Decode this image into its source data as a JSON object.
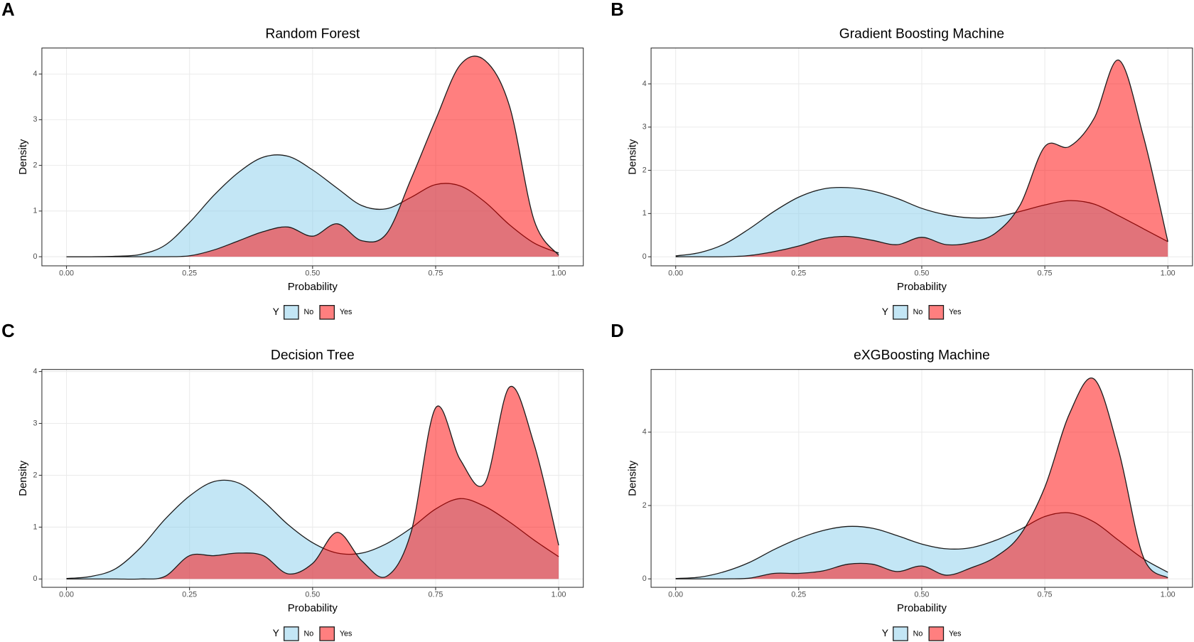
{
  "chart_data": [
    {
      "type": "area",
      "panel": "A",
      "title": "Random Forest",
      "xlabel": "Probability",
      "ylabel": "Density",
      "legend_title": "Y",
      "x": [
        0,
        0.05,
        0.1,
        0.15,
        0.2,
        0.25,
        0.3,
        0.35,
        0.4,
        0.45,
        0.5,
        0.55,
        0.6,
        0.65,
        0.7,
        0.75,
        0.8,
        0.85,
        0.9,
        0.95,
        1
      ],
      "series": [
        {
          "name": "No",
          "color": "#87CEEB",
          "values": [
            0,
            0,
            0.01,
            0.05,
            0.25,
            0.75,
            1.35,
            1.85,
            2.18,
            2.2,
            1.9,
            1.5,
            1.12,
            1.05,
            1.3,
            1.58,
            1.55,
            1.2,
            0.7,
            0.3,
            0.08
          ]
        },
        {
          "name": "Yes",
          "color": "#FF0000",
          "values": [
            0,
            0,
            0,
            0,
            0,
            0.02,
            0.15,
            0.35,
            0.55,
            0.65,
            0.45,
            0.72,
            0.35,
            0.5,
            1.7,
            3.0,
            4.2,
            4.3,
            3.3,
            0.8,
            0.03
          ]
        }
      ],
      "xlim": [
        -0.05,
        1.05
      ],
      "ylim": [
        -0.2,
        4.57
      ],
      "xticks": [
        {
          "value": 0,
          "label": "0.00"
        },
        0.25,
        {
          "value": 0.5,
          "label": "0.50"
        },
        0.75,
        {
          "value": 1,
          "label": "1.00"
        }
      ],
      "yticks": [
        0,
        1,
        2,
        3,
        4
      ],
      "grid": true
    },
    {
      "type": "area",
      "panel": "B",
      "title": "Gradient Boosting Machine",
      "xlabel": "Probability",
      "ylabel": "Density",
      "legend_title": "Y",
      "x": [
        0,
        0.05,
        0.1,
        0.15,
        0.2,
        0.25,
        0.3,
        0.35,
        0.4,
        0.45,
        0.5,
        0.55,
        0.6,
        0.65,
        0.7,
        0.75,
        0.8,
        0.85,
        0.9,
        0.95,
        1
      ],
      "series": [
        {
          "name": "No",
          "color": "#87CEEB",
          "values": [
            0.02,
            0.1,
            0.3,
            0.65,
            1.05,
            1.38,
            1.57,
            1.6,
            1.52,
            1.35,
            1.12,
            0.97,
            0.9,
            0.92,
            1.05,
            1.2,
            1.3,
            1.22,
            0.95,
            0.65,
            0.35
          ]
        },
        {
          "name": "Yes",
          "color": "#FF0000",
          "values": [
            0,
            0,
            0,
            0.03,
            0.12,
            0.25,
            0.42,
            0.47,
            0.38,
            0.28,
            0.45,
            0.28,
            0.33,
            0.55,
            1.2,
            2.55,
            2.55,
            3.2,
            4.55,
            2.8,
            0.35
          ]
        }
      ],
      "xlim": [
        -0.05,
        1.05
      ],
      "ylim": [
        -0.21,
        4.83
      ],
      "xticks": [
        {
          "value": 0,
          "label": "0.00"
        },
        0.25,
        {
          "value": 0.5,
          "label": "0.50"
        },
        0.75,
        {
          "value": 1,
          "label": "1.00"
        }
      ],
      "yticks": [
        0,
        1,
        2,
        3,
        4
      ],
      "grid": true
    },
    {
      "type": "area",
      "panel": "C",
      "title": "Decision Tree",
      "xlabel": "Probability",
      "ylabel": "Density",
      "legend_title": "Y",
      "x": [
        0,
        0.05,
        0.1,
        0.15,
        0.2,
        0.25,
        0.3,
        0.35,
        0.4,
        0.45,
        0.5,
        0.55,
        0.6,
        0.65,
        0.7,
        0.75,
        0.8,
        0.85,
        0.9,
        0.95,
        1
      ],
      "series": [
        {
          "name": "No",
          "color": "#87CEEB",
          "values": [
            0.01,
            0.05,
            0.2,
            0.6,
            1.15,
            1.6,
            1.88,
            1.85,
            1.5,
            1.05,
            0.7,
            0.5,
            0.5,
            0.68,
            0.98,
            1.35,
            1.55,
            1.4,
            1.1,
            0.75,
            0.43
          ]
        },
        {
          "name": "Yes",
          "color": "#FF0000",
          "values": [
            0,
            0,
            0,
            0,
            0.05,
            0.45,
            0.45,
            0.5,
            0.45,
            0.1,
            0.3,
            0.9,
            0.35,
            0.05,
            0.9,
            3.3,
            2.3,
            1.85,
            3.7,
            2.6,
            0.65
          ]
        }
      ],
      "xlim": [
        -0.05,
        1.05
      ],
      "ylim": [
        -0.16,
        4.04
      ],
      "xticks": [
        {
          "value": 0,
          "label": "0.00"
        },
        0.25,
        {
          "value": 0.5,
          "label": "0.50"
        },
        0.75,
        {
          "value": 1,
          "label": "1.00"
        }
      ],
      "yticks": [
        0,
        1,
        2,
        3,
        4
      ],
      "grid": true
    },
    {
      "type": "area",
      "panel": "D",
      "title": "eXGBoosting Machine",
      "xlabel": "Probability",
      "ylabel": "Density",
      "legend_title": "Y",
      "x": [
        0,
        0.05,
        0.1,
        0.15,
        0.2,
        0.25,
        0.3,
        0.35,
        0.4,
        0.45,
        0.5,
        0.55,
        0.6,
        0.65,
        0.7,
        0.75,
        0.8,
        0.85,
        0.9,
        0.95,
        1
      ],
      "series": [
        {
          "name": "No",
          "color": "#87CEEB",
          "values": [
            0.01,
            0.05,
            0.2,
            0.45,
            0.8,
            1.1,
            1.32,
            1.43,
            1.38,
            1.18,
            0.95,
            0.82,
            0.85,
            1.05,
            1.35,
            1.7,
            1.8,
            1.55,
            1.05,
            0.55,
            0.18
          ]
        },
        {
          "name": "Yes",
          "color": "#FF0000",
          "values": [
            0,
            0,
            0,
            0.02,
            0.15,
            0.15,
            0.22,
            0.4,
            0.4,
            0.2,
            0.35,
            0.1,
            0.3,
            0.6,
            1.2,
            2.5,
            4.5,
            5.45,
            3.5,
            0.6,
            0.03
          ]
        }
      ],
      "xlim": [
        -0.05,
        1.05
      ],
      "ylim": [
        -0.23,
        5.71
      ],
      "xticks": [
        {
          "value": 0,
          "label": "0.00"
        },
        0.25,
        {
          "value": 0.5,
          "label": "0.50"
        },
        0.75,
        {
          "value": 1,
          "label": "1.00"
        }
      ],
      "yticks": [
        0,
        2,
        4
      ],
      "grid": true
    }
  ]
}
